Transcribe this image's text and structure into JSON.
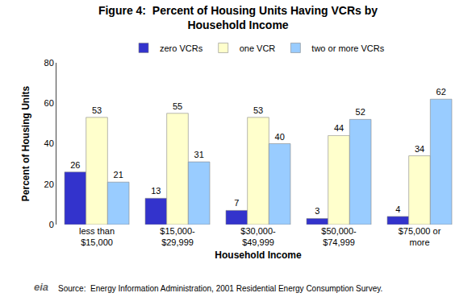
{
  "chart_data": {
    "type": "bar",
    "title": "Figure 4:  Percent of Housing Units Having VCRs by\nHousehold Income",
    "x_label": "Household Income",
    "y_label": "Percent of Housing Units",
    "categories": [
      "less than\n$15,000",
      "$15,000-\n$29,999",
      "$30,000-\n$49,999",
      "$50,000-\n$74,999",
      "$75,000 or\nmore"
    ],
    "series": [
      {
        "name": "zero VCRs",
        "color": "#3333CC",
        "values": [
          26,
          13,
          7,
          3,
          4
        ]
      },
      {
        "name": "one VCR",
        "color": "#FFFFCC",
        "values": [
          53,
          55,
          53,
          44,
          34
        ]
      },
      {
        "name": "two or more VCRs",
        "color": "#99CCFF",
        "values": [
          21,
          31,
          40,
          52,
          62
        ]
      }
    ],
    "ylim": [
      0,
      80
    ],
    "yticks": [
      0,
      20,
      40,
      60,
      80
    ],
    "grid": false,
    "legend": "top",
    "data_labels": true,
    "annotations": [
      "Source:  Energy Information Administration, 2001 Residential Energy Consumption Survey.",
      "eia"
    ]
  }
}
